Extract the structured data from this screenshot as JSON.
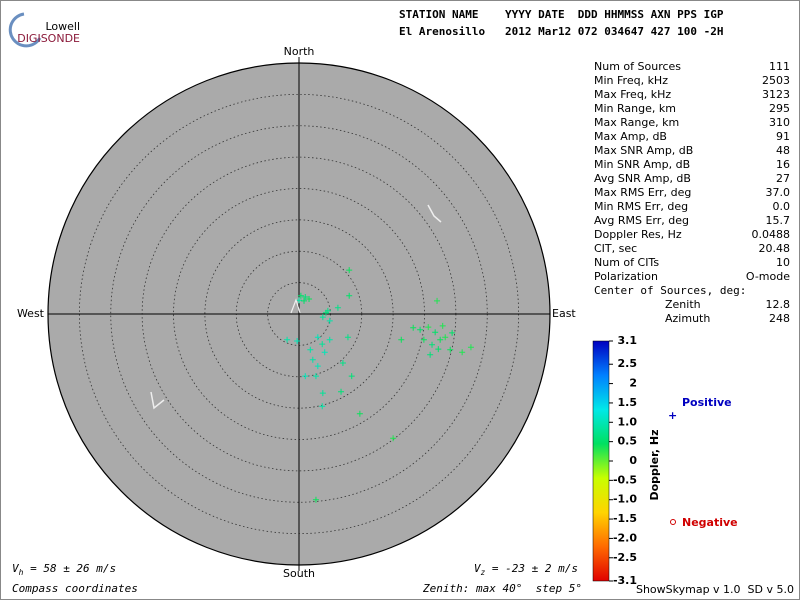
{
  "chart_data": {
    "type": "skymap",
    "logo": {
      "top": "Lowell",
      "bottom": "DIGISONDE"
    },
    "header": {
      "names": "STATION NAME    YYYY DATE  DDD HHMMSS AXN PPS IGP",
      "values": "El Arenosillo   2012 Mar12 072 034647 427 100 -2H"
    },
    "directions": {
      "north": "North",
      "south": "South",
      "east": "East",
      "west": "West"
    },
    "rlim": [
      0,
      40
    ],
    "rings": [
      5,
      10,
      15,
      20,
      25,
      30,
      35
    ],
    "stats": {
      "rows": [
        [
          "Num of Sources",
          111
        ],
        [
          "Min Freq, kHz",
          2503
        ],
        [
          "Max Freq, kHz",
          3123
        ],
        [
          "Min Range, km",
          295
        ],
        [
          "Max Range, km",
          310
        ],
        [
          "Max Amp, dB",
          91
        ],
        [
          "Max SNR Amp, dB",
          48
        ],
        [
          "Min SNR Amp, dB",
          16
        ],
        [
          "Avg SNR Amp, dB",
          27
        ],
        [
          "Max RMS Err, deg",
          "37.0"
        ],
        [
          "Min RMS Err, deg",
          "0.0"
        ],
        [
          "Avg RMS Err, deg",
          15.7
        ],
        [
          "Doppler Res, Hz",
          0.0488
        ],
        [
          "CIT, sec",
          20.48
        ],
        [
          "Num of CITs",
          10
        ],
        [
          "Polarization",
          "O-mode"
        ]
      ],
      "center_title": "Center of Sources, deg:",
      "center_rows": [
        [
          "Zenith",
          12.8
        ],
        [
          "Azimuth",
          248
        ]
      ]
    },
    "colorbar": {
      "label": "Doppler, Hz",
      "lim": [
        -3.1,
        3.1
      ],
      "colormap": [
        "#e00000",
        "#ff6a00",
        "#ffd400",
        "#c8ff00",
        "#00e060",
        "#00e8e8",
        "#0080ff",
        "#0000c0"
      ],
      "ticks": [
        3.1,
        2.5,
        2,
        1.5,
        {
          "value": 1,
          "label": "1.0"
        },
        0.5,
        0,
        -0.5,
        {
          "value": -1,
          "label": "-1.0"
        },
        -1.5,
        {
          "value": -2,
          "label": "-2.0"
        },
        -2.5,
        -3.1
      ]
    },
    "legend": {
      "positive": "Positive",
      "negative": "Negative"
    },
    "vh": {
      "symbol": "V",
      "sub": "h",
      "text": " = 58 ± 26 m/s"
    },
    "vz": {
      "symbol": "V",
      "sub": "z",
      "text": " = -23 ± 2 m/s"
    },
    "footer": {
      "left": "Compass coordinates",
      "center": "Zenith: max 40°  step 5°",
      "right": "ShowSkymap v 1.0  SD v 5.0"
    },
    "points": {
      "x": [
        0.3,
        1.0,
        1.6,
        0,
        0.8,
        8.0,
        8.0,
        6.2,
        4.3,
        3.8,
        4.9,
        4.6,
        -0.3,
        -1.9,
        3.0,
        3.7,
        1.8,
        4.1,
        2.2,
        7.0,
        3.0,
        8.4,
        2.7,
        6.7,
        3.8,
        3.7,
        9.7,
        15.0,
        2.7,
        4.9,
        7.8,
        1.0,
        22.0,
        18.2,
        19.3,
        20.6,
        21.7,
        19.9,
        21.2,
        22.5,
        23.3,
        24.4,
        20.9,
        24.1,
        26.0,
        27.4,
        16.3,
        22.9,
        22.2
      ],
      "y": [
        2.9,
        2.7,
        2.4,
        2.2,
        2.1,
        7.0,
        2.9,
        1.0,
        0.2,
        -0.5,
        -1.1,
        0.5,
        -4.3,
        -4.1,
        -3.7,
        -4.8,
        -5.7,
        -6.1,
        -7.3,
        -7.8,
        -8.3,
        -9.9,
        -9.9,
        -12.4,
        -12.6,
        -14.7,
        -15.9,
        -19.8,
        -29.6,
        -4.1,
        -3.7,
        -9.9,
        2.1,
        -2.2,
        -2.5,
        -2.1,
        -2.9,
        -4.1,
        -4.9,
        -4.1,
        -3.7,
        -3.0,
        -6.5,
        -5.7,
        -6.1,
        -5.3,
        -4.1,
        -1.9,
        -5.6
      ],
      "doppler": [
        0.5,
        0.6,
        0.4,
        0.9,
        0.5,
        0.4,
        0.5,
        0.7,
        0.6,
        0.8,
        0.9,
        0.7,
        1.0,
        0.9,
        1.0,
        0.8,
        0.9,
        1.0,
        0.9,
        0.7,
        1.0,
        0.6,
        0.9,
        0.6,
        0.8,
        0.9,
        0.4,
        0.3,
        0.4,
        0.9,
        0.7,
        1.0,
        0.3,
        0.4,
        0.5,
        0.3,
        0.5,
        0.4,
        0.6,
        0.4,
        0.3,
        0.5,
        0.6,
        0.4,
        0.3,
        0.3,
        0.4,
        0.3,
        0.5
      ]
    }
  }
}
